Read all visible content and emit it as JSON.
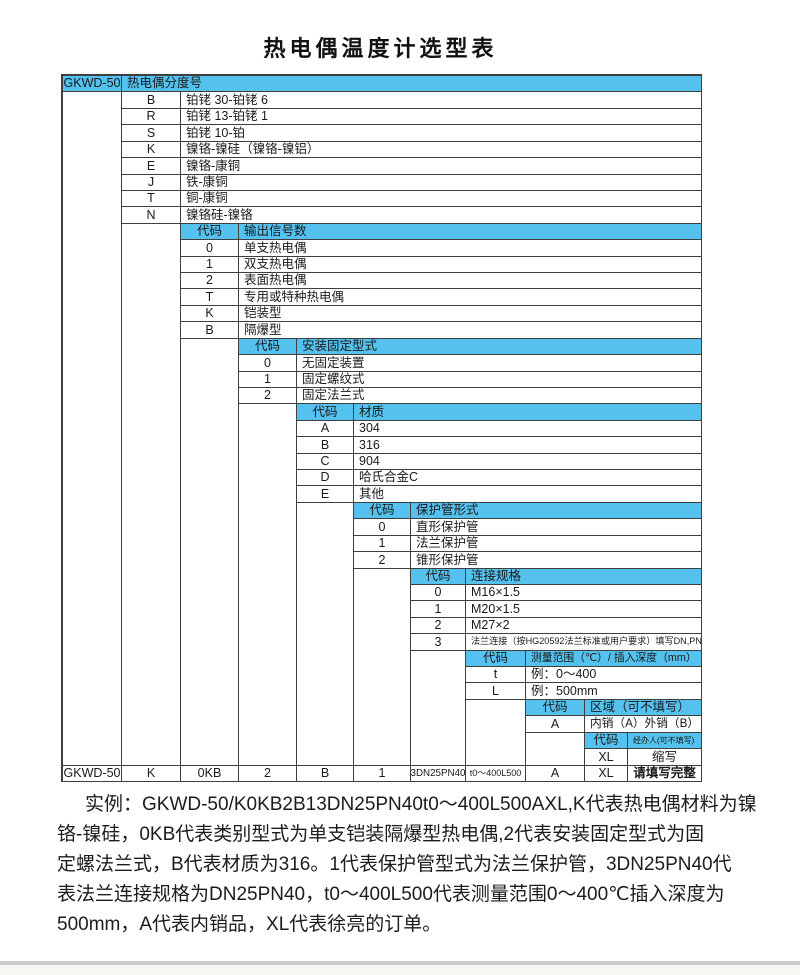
{
  "title": "热电偶温度计选型表",
  "colors": {
    "header_blue": "#55c1ee",
    "border": "#3f3f3f",
    "page_bg": "#ffffff"
  },
  "table": {
    "top_header": {
      "model": "GKWD-50",
      "title": "热电偶分度号"
    },
    "code_header_label": "代码",
    "sections": [
      {
        "level": 1,
        "header": null,
        "rows": [
          [
            "B",
            "铂铑 30-铂铑 6"
          ],
          [
            "R",
            "铂铑 13-铂铑 1"
          ],
          [
            "S",
            "铂铑 10-铂"
          ],
          [
            "K",
            "镍铬-镍硅（镍铬-镍铝）"
          ],
          [
            "E",
            "镍铬-康铜"
          ],
          [
            "J",
            "铁-康铜"
          ],
          [
            "T",
            "铜-康铜"
          ],
          [
            "N",
            "镍铬硅-镍铬"
          ]
        ]
      },
      {
        "level": 2,
        "header": [
          "代码",
          "输出信号数"
        ],
        "rows": [
          [
            "0",
            "单支热电偶"
          ],
          [
            "1",
            "双支热电偶"
          ],
          [
            "2",
            "表面热电偶"
          ],
          [
            "T",
            "专用或特种热电偶"
          ],
          [
            "K",
            "铠装型"
          ],
          [
            "B",
            "隔爆型"
          ]
        ]
      },
      {
        "level": 3,
        "header": [
          "代码",
          "安装固定型式"
        ],
        "rows": [
          [
            "0",
            "无固定装置"
          ],
          [
            "1",
            "固定螺纹式"
          ],
          [
            "2",
            "固定法兰式"
          ]
        ]
      },
      {
        "level": 4,
        "header": [
          "代码",
          "材质"
        ],
        "rows": [
          [
            "A",
            "304"
          ],
          [
            "B",
            "316"
          ],
          [
            "C",
            "904"
          ],
          [
            "D",
            "哈氏合金C"
          ],
          [
            "E",
            "其他"
          ]
        ]
      },
      {
        "level": 5,
        "header": [
          "代码",
          "保护管形式"
        ],
        "rows": [
          [
            "0",
            "直形保护管"
          ],
          [
            "1",
            "法兰保护管"
          ],
          [
            "2",
            "锥形保护管"
          ]
        ]
      },
      {
        "level": 6,
        "header": [
          "代码",
          "连接规格"
        ],
        "rows": [
          [
            "0",
            "M16×1.5"
          ],
          [
            "1",
            "M20×1.5"
          ],
          [
            "2",
            "M27×2"
          ],
          [
            "3",
            "法兰连接（按HG20592法兰标准或用户要求）填写DN,PN"
          ]
        ]
      },
      {
        "level": 7,
        "header": [
          "代码",
          "测量范围（℃）/ 插入深度（mm）"
        ],
        "rows": [
          [
            "t",
            "例：0～400"
          ],
          [
            "L",
            "例：500mm"
          ]
        ]
      },
      {
        "level": 8,
        "header": [
          "代码",
          "区域（可不填写）"
        ],
        "rows": [
          [
            "A",
            "内销（A）外销（B）"
          ]
        ]
      },
      {
        "level": 9,
        "header": [
          "代码",
          "经办人(可不填写)"
        ],
        "rows": [
          [
            "XL",
            "缩写"
          ]
        ]
      }
    ],
    "example_row": [
      "GKWD-50",
      "K",
      "0KB",
      "2",
      "B",
      "1",
      "3DN25PN40",
      "t0～400L500",
      "A",
      "XL",
      "请填写完整"
    ]
  },
  "example": {
    "lines": [
      "实例：GKWD-50/K0KB2B13DN25PN40t0～400L500AXL,K代表热电偶材料为镍",
      "铬-镍硅，0KB代表类别型式为单支铠装隔爆型热电偶,2代表安装固定型式为固",
      "定螺法兰式，B代表材质为316。1代表保护管型式为法兰保护管，3DN25PN40代",
      "表法兰连接规格为DN25PN40，t0～400L500代表测量范围0～400℃插入深度为",
      "500mm，A代表内销品，XL代表徐亮的订单。"
    ]
  }
}
